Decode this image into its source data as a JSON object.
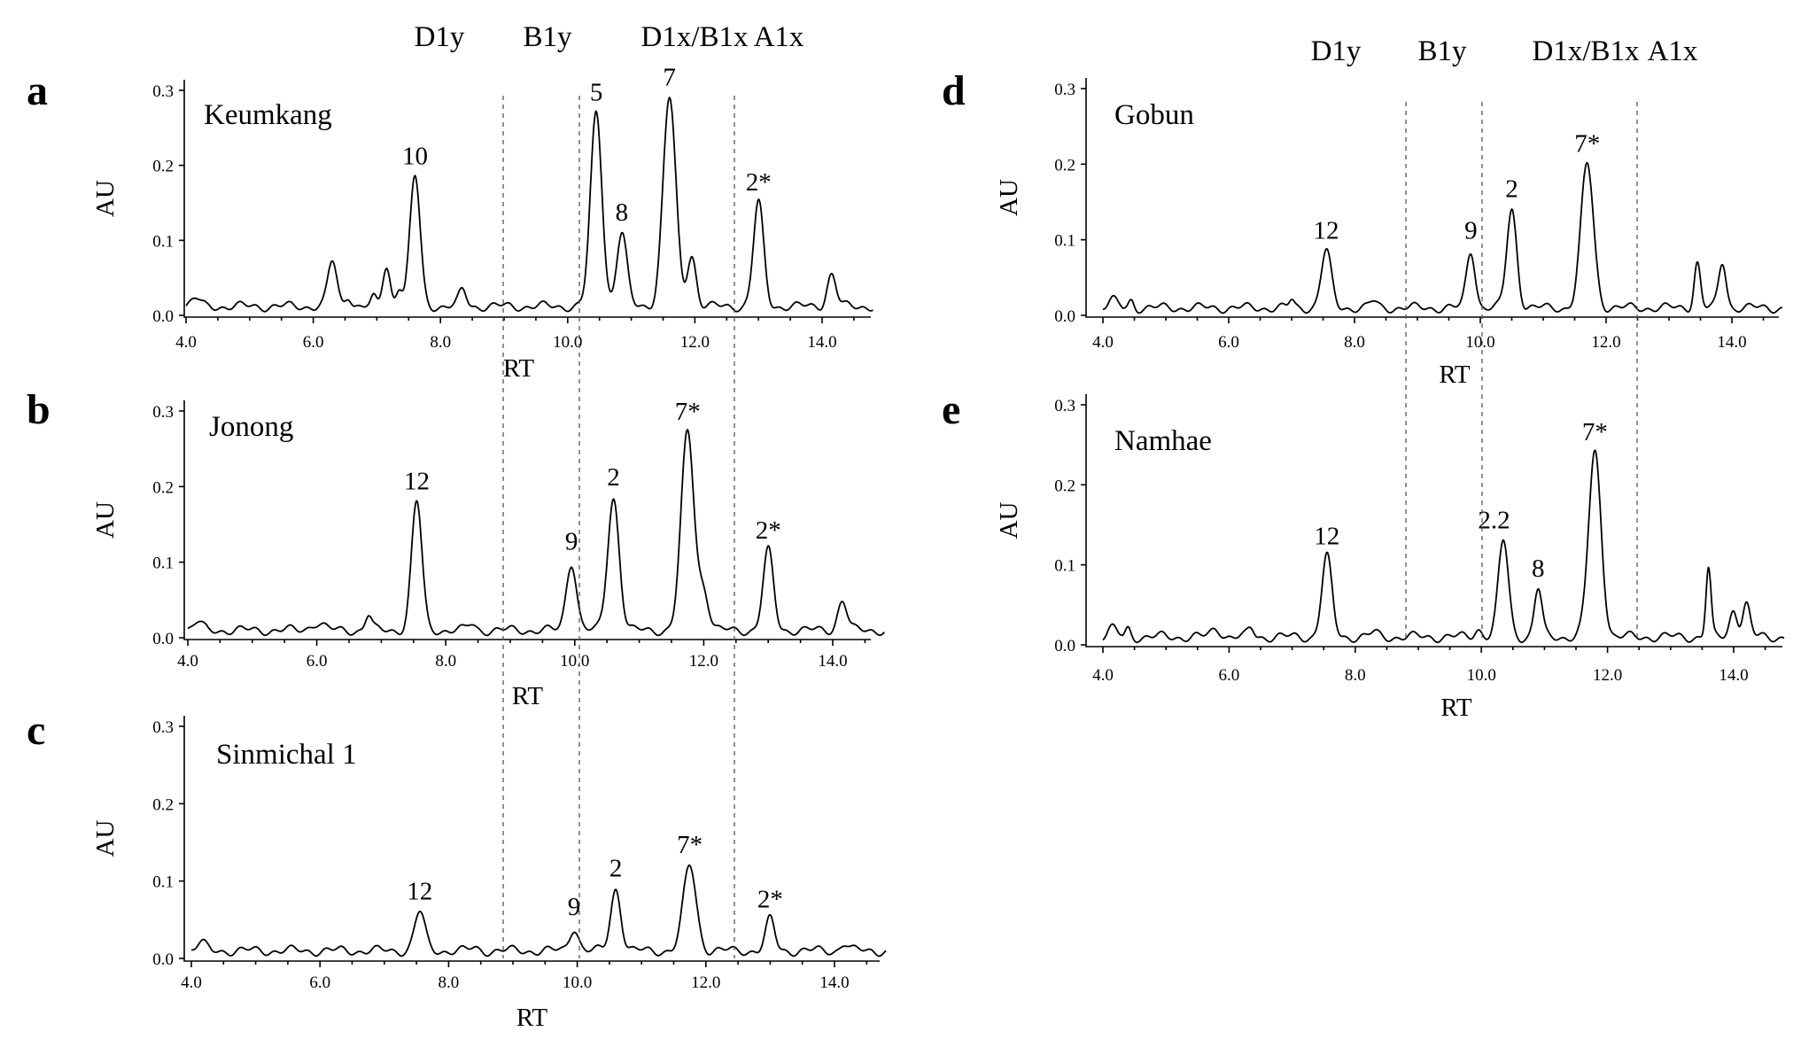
{
  "chart_data": [
    {
      "panel": "a",
      "type": "line",
      "title": "Keumkang",
      "xlabel": "RT",
      "ylabel": "AU",
      "xlim": [
        4.0,
        14.8
      ],
      "ylim": [
        0.0,
        0.3
      ],
      "xticks": [
        "4.0",
        "6.0",
        "8.0",
        "10.0",
        "12.0",
        "14.0"
      ],
      "yticks": [
        "0.0",
        "0.1",
        "0.2",
        "0.3"
      ],
      "regions": [
        "D1y",
        "B1y",
        "D1x/B1x",
        "A1x"
      ],
      "baseline": 0.012,
      "peaks": [
        {
          "x": 6.3,
          "y": 0.072,
          "w": 0.07
        },
        {
          "x": 6.55,
          "y": 0.027,
          "w": 0.05
        },
        {
          "x": 6.95,
          "y": 0.022,
          "w": 0.04
        },
        {
          "x": 7.15,
          "y": 0.065,
          "w": 0.06
        },
        {
          "x": 7.35,
          "y": 0.038,
          "w": 0.05
        },
        {
          "x": 7.6,
          "y": 0.185,
          "w": 0.08
        },
        {
          "x": 8.35,
          "y": 0.033,
          "w": 0.06
        },
        {
          "x": 10.45,
          "y": 0.27,
          "w": 0.09
        },
        {
          "x": 10.85,
          "y": 0.11,
          "w": 0.08
        },
        {
          "x": 11.6,
          "y": 0.29,
          "w": 0.1
        },
        {
          "x": 11.95,
          "y": 0.08,
          "w": 0.07
        },
        {
          "x": 13.0,
          "y": 0.15,
          "w": 0.08
        },
        {
          "x": 14.15,
          "y": 0.055,
          "w": 0.07
        }
      ],
      "peak_labels": [
        {
          "text": "10",
          "x": 7.6,
          "y": 0.185
        },
        {
          "text": "5",
          "x": 10.45,
          "y": 0.27
        },
        {
          "text": "8",
          "x": 10.85,
          "y": 0.11
        },
        {
          "text": "7",
          "x": 11.6,
          "y": 0.29
        },
        {
          "text": "2*",
          "x": 13.0,
          "y": 0.15
        }
      ]
    },
    {
      "panel": "b",
      "type": "line",
      "title": "Jonong",
      "xlabel": "RT",
      "ylabel": "AU",
      "xlim": [
        4.0,
        14.8
      ],
      "ylim": [
        0.0,
        0.3
      ],
      "xticks": [
        "4.0",
        "6.0",
        "8.0",
        "10.0",
        "12.0",
        "14.0"
      ],
      "yticks": [
        "0.0",
        "0.1",
        "0.2",
        "0.3"
      ],
      "baseline": 0.01,
      "peaks": [
        {
          "x": 6.0,
          "y": 0.02,
          "w": 0.1
        },
        {
          "x": 6.8,
          "y": 0.03,
          "w": 0.05
        },
        {
          "x": 7.55,
          "y": 0.18,
          "w": 0.08
        },
        {
          "x": 8.4,
          "y": 0.018,
          "w": 0.06
        },
        {
          "x": 9.95,
          "y": 0.1,
          "w": 0.08
        },
        {
          "x": 10.6,
          "y": 0.185,
          "w": 0.09
        },
        {
          "x": 11.75,
          "y": 0.272,
          "w": 0.1
        },
        {
          "x": 12.0,
          "y": 0.06,
          "w": 0.08
        },
        {
          "x": 13.0,
          "y": 0.115,
          "w": 0.08
        },
        {
          "x": 14.15,
          "y": 0.05,
          "w": 0.07
        }
      ],
      "peak_labels": [
        {
          "text": "12",
          "x": 7.55,
          "y": 0.18
        },
        {
          "text": "9",
          "x": 9.95,
          "y": 0.1
        },
        {
          "text": "2",
          "x": 10.6,
          "y": 0.185
        },
        {
          "text": "7*",
          "x": 11.75,
          "y": 0.272
        },
        {
          "text": "2*",
          "x": 13.0,
          "y": 0.115
        }
      ]
    },
    {
      "panel": "c",
      "type": "line",
      "title": "Sinmichal 1",
      "xlabel": "RT",
      "ylabel": "AU",
      "xlim": [
        4.0,
        14.8
      ],
      "ylim": [
        0.0,
        0.3
      ],
      "xticks": [
        "4.0",
        "6.0",
        "8.0",
        "10.0",
        "12.0",
        "14.0"
      ],
      "yticks": [
        "0.0",
        "0.1",
        "0.2",
        "0.3"
      ],
      "baseline": 0.01,
      "peaks": [
        {
          "x": 7.55,
          "y": 0.06,
          "w": 0.08
        },
        {
          "x": 8.4,
          "y": 0.013,
          "w": 0.06
        },
        {
          "x": 9.95,
          "y": 0.04,
          "w": 0.07
        },
        {
          "x": 10.6,
          "y": 0.09,
          "w": 0.08
        },
        {
          "x": 11.75,
          "y": 0.12,
          "w": 0.1
        },
        {
          "x": 13.0,
          "y": 0.05,
          "w": 0.07
        },
        {
          "x": 14.15,
          "y": 0.02,
          "w": 0.06
        }
      ],
      "peak_labels": [
        {
          "text": "12",
          "x": 7.55,
          "y": 0.06
        },
        {
          "text": "9",
          "x": 9.95,
          "y": 0.04
        },
        {
          "text": "2",
          "x": 10.6,
          "y": 0.09
        },
        {
          "text": "7*",
          "x": 11.75,
          "y": 0.12
        },
        {
          "text": "2*",
          "x": 13.0,
          "y": 0.05
        }
      ]
    },
    {
      "panel": "d",
      "type": "line",
      "title": "Gobun",
      "xlabel": "RT",
      "ylabel": "AU",
      "xlim": [
        4.0,
        14.8
      ],
      "ylim": [
        0.0,
        0.3
      ],
      "xticks": [
        "4.0",
        "6.0",
        "8.0",
        "10.0",
        "12.0",
        "14.0"
      ],
      "yticks": [
        "0.0",
        "0.1",
        "0.2",
        "0.3"
      ],
      "regions": [
        "D1y",
        "B1y",
        "D1x/B1x",
        "A1x"
      ],
      "baseline": 0.01,
      "peaks": [
        {
          "x": 4.45,
          "y": 0.02,
          "w": 0.04
        },
        {
          "x": 7.0,
          "y": 0.02,
          "w": 0.04
        },
        {
          "x": 7.55,
          "y": 0.085,
          "w": 0.08
        },
        {
          "x": 8.3,
          "y": 0.018,
          "w": 0.06
        },
        {
          "x": 9.85,
          "y": 0.085,
          "w": 0.07
        },
        {
          "x": 10.5,
          "y": 0.14,
          "w": 0.08
        },
        {
          "x": 11.7,
          "y": 0.2,
          "w": 0.1
        },
        {
          "x": 13.45,
          "y": 0.07,
          "w": 0.05
        },
        {
          "x": 13.85,
          "y": 0.07,
          "w": 0.06
        }
      ],
      "peak_labels": [
        {
          "text": "12",
          "x": 7.55,
          "y": 0.085
        },
        {
          "text": "9",
          "x": 9.85,
          "y": 0.085
        },
        {
          "text": "2",
          "x": 10.5,
          "y": 0.14
        },
        {
          "text": "7*",
          "x": 11.7,
          "y": 0.2
        }
      ]
    },
    {
      "panel": "e",
      "type": "line",
      "title": "Namhae",
      "xlabel": "RT",
      "ylabel": "AU",
      "xlim": [
        4.0,
        14.8
      ],
      "ylim": [
        0.0,
        0.3
      ],
      "xticks": [
        "4.0",
        "6.0",
        "8.0",
        "10.0",
        "12.0",
        "14.0"
      ],
      "yticks": [
        "0.0",
        "0.1",
        "0.2",
        "0.3"
      ],
      "baseline": 0.01,
      "peaks": [
        {
          "x": 4.4,
          "y": 0.02,
          "w": 0.04
        },
        {
          "x": 5.8,
          "y": 0.02,
          "w": 0.08
        },
        {
          "x": 6.35,
          "y": 0.02,
          "w": 0.05
        },
        {
          "x": 7.55,
          "y": 0.11,
          "w": 0.08
        },
        {
          "x": 8.3,
          "y": 0.015,
          "w": 0.06
        },
        {
          "x": 9.95,
          "y": 0.02,
          "w": 0.06
        },
        {
          "x": 10.35,
          "y": 0.13,
          "w": 0.08
        },
        {
          "x": 10.9,
          "y": 0.07,
          "w": 0.06
        },
        {
          "x": 11.8,
          "y": 0.24,
          "w": 0.1
        },
        {
          "x": 13.6,
          "y": 0.095,
          "w": 0.04
        },
        {
          "x": 14.0,
          "y": 0.045,
          "w": 0.06
        },
        {
          "x": 14.2,
          "y": 0.05,
          "w": 0.06
        }
      ],
      "peak_labels": [
        {
          "text": "12",
          "x": 7.55,
          "y": 0.11
        },
        {
          "text": "2.2",
          "x": 10.2,
          "y": 0.13
        },
        {
          "text": "8",
          "x": 10.9,
          "y": 0.07
        },
        {
          "text": "7*",
          "x": 11.8,
          "y": 0.24
        }
      ]
    }
  ]
}
